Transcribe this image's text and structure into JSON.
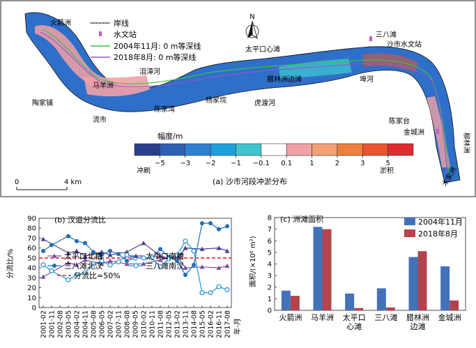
{
  "map": {
    "title": "(a) 沙市河段冲淤分布",
    "legend": {
      "shoreline": "岸线",
      "station": "水文站",
      "line_2004": "2004年11月: 0 m等深线",
      "line_2018": "2018年8月: 0 m等深线"
    },
    "colorbar": {
      "title": "幅度/m",
      "ticks": [
        "−5",
        "−3",
        "−2",
        "−1",
        "−0.1",
        "0.1",
        "1",
        "2",
        "3",
        "5"
      ],
      "erosion": "冲刷",
      "deposition": "淤积",
      "colors": [
        "#2b3e8c",
        "#2f5fb3",
        "#2e7fd2",
        "#1f9fdc",
        "#3fc4d0",
        "#ffffff",
        "#f2a1a6",
        "#f3a174",
        "#ee7f3c",
        "#e8552e",
        "#e02b2f"
      ]
    },
    "scale": {
      "zero": "0",
      "km": "4 km"
    },
    "north": "N",
    "place_names": {
      "huojianzhou": "火箭洲",
      "majiazhou": "马羊洲",
      "taopingkou": "太平口心滩",
      "sanbatan": "三八滩",
      "shashi_station": "沙市水文站",
      "jujianghe": "沮漳河",
      "taojiapu": "陶家铺",
      "liushi": "流市",
      "chenjiawan": "陈家湾",
      "yangjiaoji": "杨家垸",
      "hudu": "虎渡河",
      "lamlinzhou": "腊林洲边滩",
      "anhe": "埠河",
      "chenjiatai": "陈家台",
      "jinchengzhou": "金城洲",
      "liulinzhou": "柳林洲",
      "mumen": "木家洲"
    }
  },
  "chart_data": [
    {
      "type": "line",
      "title": "(b) 汊道分流比",
      "ylabel": "分流比/%",
      "xlabel": "年-月",
      "ylim": [
        0,
        90
      ],
      "yticks": [
        0,
        10,
        20,
        30,
        40,
        50,
        60,
        70,
        80,
        90
      ],
      "x": [
        "2001-02",
        "2001-11",
        "2002-08",
        "2003-05",
        "2004-02",
        "2004-11",
        "2005-08",
        "2006-05",
        "2007-02",
        "2007-11",
        "2008-08",
        "2009-05",
        "2010-02",
        "2010-11",
        "2011-08",
        "2012-05",
        "2013-02",
        "2013-11",
        "2014-08",
        "2015-05",
        "2016-02",
        "2016-11",
        "2017-08"
      ],
      "reference_line": {
        "value": 50,
        "label": "分流比=50%"
      },
      "series": [
        {
          "name": "太平口北槽",
          "color": "#7a4fa3",
          "marker": "triangle-up",
          "points": [
            [
              0,
              31
            ],
            [
              3,
              45
            ],
            [
              4,
              43
            ],
            [
              5,
              48
            ],
            [
              7,
              44
            ],
            [
              8,
              47
            ],
            [
              10,
              44
            ],
            [
              12,
              44
            ],
            [
              14,
              48
            ],
            [
              16,
              52
            ],
            [
              17,
              40
            ],
            [
              19,
              41
            ],
            [
              21,
              40
            ],
            [
              22,
              42
            ]
          ]
        },
        {
          "name": "太平口南槽",
          "color": "#4b3f8f",
          "marker": "triangle-up",
          "points": [
            [
              0,
              69
            ],
            [
              3,
              55
            ],
            [
              4,
              57
            ],
            [
              5,
              52
            ],
            [
              7,
              56
            ],
            [
              8,
              53
            ],
            [
              10,
              56
            ],
            [
              12,
              65
            ],
            [
              14,
              52
            ],
            [
              16,
              48
            ],
            [
              17,
              60
            ],
            [
              19,
              59
            ],
            [
              21,
              60
            ],
            [
              22,
              57
            ]
          ]
        },
        {
          "name": "三八滩北汊",
          "color": "#1f6fb5",
          "marker": "circle-filled",
          "points": [
            [
              0,
              57
            ],
            [
              1,
              63
            ],
            [
              3,
              72
            ],
            [
              4,
              67
            ],
            [
              5,
              65
            ],
            [
              6,
              56
            ],
            [
              7,
              53
            ],
            [
              8,
              57
            ],
            [
              9,
              54
            ],
            [
              10,
              47
            ],
            [
              11,
              50
            ],
            [
              12,
              50
            ],
            [
              13,
              50
            ],
            [
              14,
              59
            ],
            [
              15,
              51
            ],
            [
              16,
              47
            ],
            [
              17,
              33
            ],
            [
              18,
              43
            ],
            [
              19,
              85
            ],
            [
              20,
              85
            ],
            [
              21,
              79
            ],
            [
              22,
              82
            ]
          ]
        },
        {
          "name": "三八滩南汊",
          "color": "#1f8fd0",
          "marker": "circle-open",
          "points": [
            [
              0,
              43
            ],
            [
              1,
              37
            ],
            [
              3,
              28
            ],
            [
              4,
              33
            ],
            [
              5,
              35
            ],
            [
              6,
              44
            ],
            [
              7,
              47
            ],
            [
              8,
              43
            ],
            [
              9,
              46
            ],
            [
              10,
              53
            ],
            [
              11,
              50
            ],
            [
              12,
              50
            ],
            [
              13,
              50
            ],
            [
              14,
              41
            ],
            [
              15,
              49
            ],
            [
              16,
              53
            ],
            [
              17,
              67
            ],
            [
              18,
              57
            ],
            [
              19,
              15
            ],
            [
              20,
              15
            ],
            [
              21,
              21
            ],
            [
              22,
              18
            ]
          ]
        }
      ]
    },
    {
      "type": "bar",
      "title": "(c) 洲滩面积",
      "ylabel": "面积/(×10⁶ m²)",
      "ylim": [
        0,
        8
      ],
      "yticks": [
        0,
        1,
        2,
        3,
        4,
        5,
        6,
        7,
        8
      ],
      "categories": [
        "火箭洲",
        "马羊洲",
        "太平口\n心滩",
        "三八滩",
        "腊林洲\n边滩",
        "金城洲"
      ],
      "series": [
        {
          "name": "2004年11月",
          "color": "#4472b8",
          "values": [
            1.7,
            7.2,
            1.45,
            1.9,
            4.6,
            3.8
          ]
        },
        {
          "name": "2018年8月",
          "color": "#b3434c",
          "values": [
            1.25,
            7.0,
            0.2,
            0.25,
            5.1,
            0.85
          ]
        }
      ]
    }
  ]
}
